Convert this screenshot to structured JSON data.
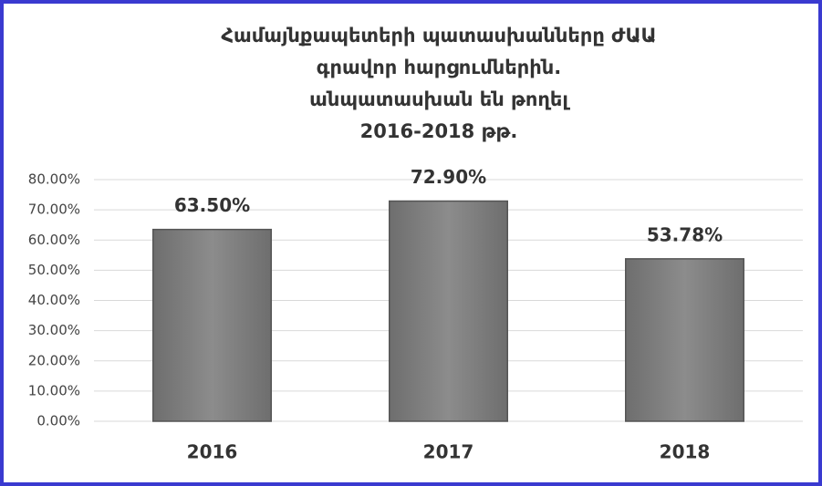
{
  "chart_data": {
    "type": "bar",
    "title": [
      "Համայնքապետերի պատասխանները ԺԱԱ",
      "գրավոր հարցումներին."
    ],
    "subtitle": "անպատասխան են թողել",
    "period": "2016-2018 թթ.",
    "categories": [
      "2016",
      "2017",
      "2018"
    ],
    "values": [
      63.5,
      72.9,
      53.78
    ],
    "value_labels": [
      "63.50%",
      "72.90%",
      "53.78%"
    ],
    "color": "#808080",
    "subtitle_color": "#7f7f7f",
    "ylim": [
      0,
      80
    ],
    "yticks": [
      {
        "value": 0,
        "label": "0.00%"
      },
      {
        "value": 10,
        "label": "10.00%"
      },
      {
        "value": 20,
        "label": "20.00%"
      },
      {
        "value": 30,
        "label": "30.00%"
      },
      {
        "value": 40,
        "label": "40.00%"
      },
      {
        "value": 50,
        "label": "50.00%"
      },
      {
        "value": 60,
        "label": "60.00%"
      },
      {
        "value": 70,
        "label": "70.00%"
      },
      {
        "value": 80,
        "label": "80.00%"
      }
    ],
    "grid": true
  }
}
